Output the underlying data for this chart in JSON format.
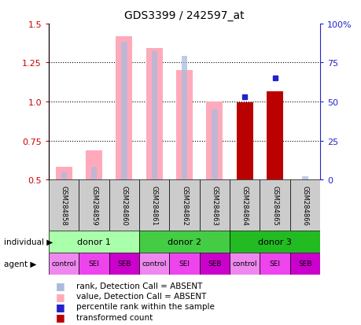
{
  "title": "GDS3399 / 242597_at",
  "samples": [
    "GSM284858",
    "GSM284859",
    "GSM284860",
    "GSM284861",
    "GSM284862",
    "GSM284863",
    "GSM284864",
    "GSM284865",
    "GSM284866"
  ],
  "ylim_left": [
    0.5,
    1.5
  ],
  "ylim_right": [
    0,
    100
  ],
  "yticks_left": [
    0.5,
    0.75,
    1.0,
    1.25,
    1.5
  ],
  "yticks_right": [
    0,
    25,
    50,
    75,
    100
  ],
  "ytick_labels_right": [
    "0",
    "25",
    "50",
    "75",
    "100%"
  ],
  "bar_bottom": 0.5,
  "pink_bar_heights": [
    0.08,
    0.19,
    0.92,
    0.84,
    0.7,
    0.5,
    0.0,
    0.0,
    0.0
  ],
  "red_bar_heights": [
    0.0,
    0.0,
    0.0,
    0.0,
    0.0,
    0.0,
    0.497,
    0.565,
    0.0
  ],
  "blue_square_ranks": [
    null,
    null,
    null,
    null,
    null,
    null,
    53,
    65,
    null
  ],
  "light_blue_pct": [
    5,
    8,
    88,
    82,
    79,
    45,
    0,
    0,
    2
  ],
  "donors": [
    {
      "label": "donor 1",
      "start": 0,
      "end": 3,
      "color": "#aaffaa"
    },
    {
      "label": "donor 2",
      "start": 3,
      "end": 6,
      "color": "#44cc44"
    },
    {
      "label": "donor 3",
      "start": 6,
      "end": 9,
      "color": "#22bb22"
    }
  ],
  "agents": [
    "control",
    "SEI",
    "SEB",
    "control",
    "SEI",
    "SEB",
    "control",
    "SEI",
    "SEB"
  ],
  "agent_bg_colors": [
    "#ee88ee",
    "#ee44ee",
    "#cc00cc",
    "#ee88ee",
    "#ee44ee",
    "#cc00cc",
    "#ee88ee",
    "#ee44ee",
    "#cc00cc"
  ],
  "pink_bar_color": "#ffaabb",
  "red_bar_color": "#bb0000",
  "light_blue_color": "#aabbdd",
  "blue_square_color": "#2222cc",
  "left_axis_color": "#cc0000",
  "right_axis_color": "#2222cc",
  "sample_box_color": "#cccccc",
  "legend_items": [
    {
      "color": "#bb0000",
      "label": "transformed count"
    },
    {
      "color": "#2222cc",
      "label": "percentile rank within the sample"
    },
    {
      "color": "#ffaabb",
      "label": "value, Detection Call = ABSENT"
    },
    {
      "color": "#aabbdd",
      "label": "rank, Detection Call = ABSENT"
    }
  ]
}
